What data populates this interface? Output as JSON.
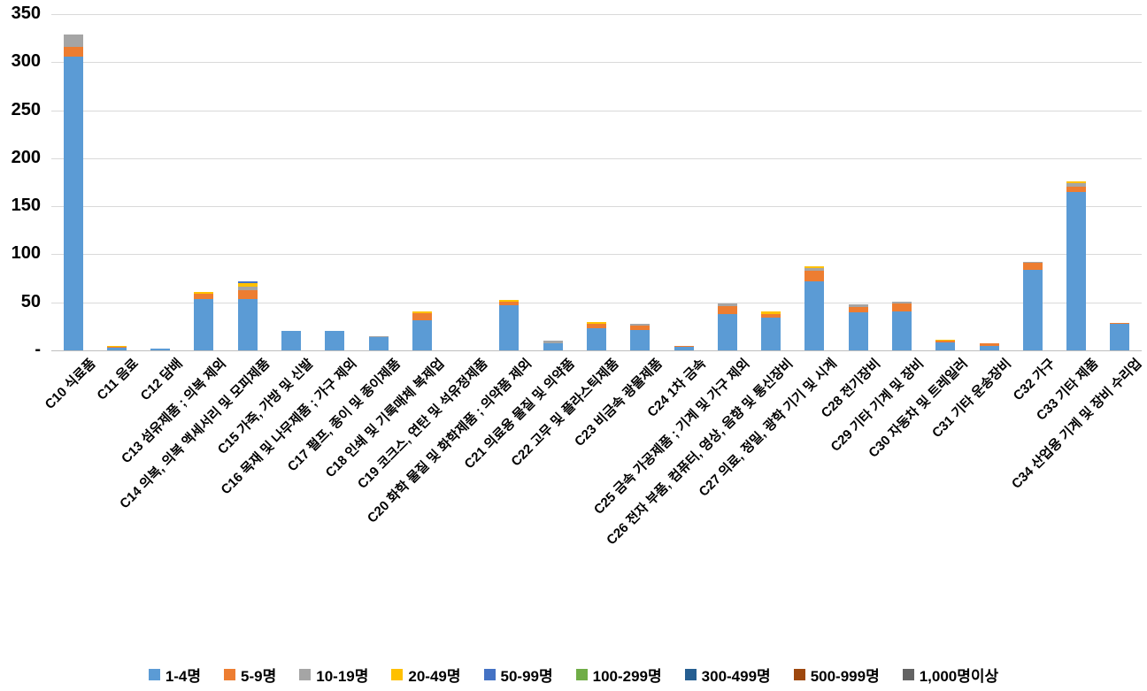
{
  "chart_data": {
    "type": "bar",
    "stacked": true,
    "title": "",
    "xlabel": "",
    "ylabel": "",
    "ylim": [
      0,
      350
    ],
    "ytick_step": 50,
    "ytick_labels": [
      "-",
      "50",
      "100",
      "150",
      "200",
      "250",
      "300",
      "350"
    ],
    "grid": true,
    "legend_position": "bottom",
    "categories": [
      "C10 식료품",
      "C11 음료",
      "C12 담배",
      "C13 섬유제품 ; 의복 제외",
      "C14 의복, 의복 액세서리 및 모피제품",
      "C15 가죽, 가방 및 신발",
      "C16 목재 및 나무제품 ; 가구 제외",
      "C17 펄프, 종이 및 종이제품",
      "C18 인쇄 및 기록매체 복제업",
      "C19 코크스, 연탄 및 석유정제품",
      "C20 화학 물질 및 화학제품 ; 의약품 제외",
      "C21 의료용 물질 및 의약품",
      "C22 고무 및 플라스틱제품",
      "C23 비금속 광물제품",
      "C24 1차 금속",
      "C25 금속 가공제품 ; 기계 및 가구 제외",
      "C26 전자 부품, 컴퓨터, 영상, 음향 및 통신장비",
      "C27 의료, 정밀, 광학 기기 및 시계",
      "C28 전기장비",
      "C29 기타 기계 및 장비",
      "C30 자동차 및 트레일러",
      "C31 기타 운송장비",
      "C32 가구",
      "C33 기타 제품",
      "C34 산업용 기계 및 장비 수리업"
    ],
    "series": [
      {
        "name": "1-4명",
        "color": "#5B9BD5",
        "values": [
          306,
          3,
          1.5,
          53,
          53,
          20.5,
          20.5,
          14,
          31,
          0,
          47,
          7,
          23,
          21,
          4,
          38,
          34,
          72,
          40,
          41,
          8.5,
          5,
          84,
          165,
          28
        ]
      },
      {
        "name": "5-9명",
        "color": "#ED7D31",
        "values": [
          10,
          1,
          0,
          6,
          10,
          0,
          0,
          0,
          8,
          0,
          4,
          0,
          5,
          5,
          0.5,
          8,
          3.5,
          11,
          5,
          8,
          1.5,
          2,
          7.5,
          5,
          1
        ]
      },
      {
        "name": "10-19명",
        "color": "#A5A5A5",
        "values": [
          13,
          0,
          0,
          0,
          3,
          0,
          0,
          1,
          0,
          0,
          0,
          3,
          0,
          2,
          0,
          3,
          0,
          3,
          3,
          2,
          0,
          0,
          1,
          4,
          0
        ]
      },
      {
        "name": "20-49명",
        "color": "#FFC000",
        "values": [
          0,
          0.5,
          0,
          2,
          4,
          0,
          0,
          0,
          2,
          0,
          2,
          0,
          1.5,
          0,
          0,
          0,
          3,
          1.5,
          0,
          0,
          1,
          0,
          0,
          2,
          0
        ]
      },
      {
        "name": "50-99명",
        "color": "#4472C4",
        "values": [
          0,
          0,
          0,
          0,
          1.5,
          0,
          0,
          0,
          0,
          0,
          0,
          0,
          0,
          0,
          0,
          0,
          0,
          0,
          0,
          0,
          0,
          0,
          0,
          0,
          0
        ]
      },
      {
        "name": "100-299명",
        "color": "#70AD47",
        "values": [
          0,
          0,
          0,
          0,
          0,
          0,
          0,
          0,
          0,
          0,
          0,
          0,
          0,
          0,
          0,
          0,
          0,
          0,
          0,
          0,
          0,
          0,
          0,
          0,
          0
        ]
      },
      {
        "name": "300-499명",
        "color": "#255E91",
        "values": [
          0,
          0,
          0,
          0,
          0,
          0,
          0,
          0,
          0,
          0,
          0,
          0,
          0,
          0,
          0,
          0,
          0,
          0,
          0,
          0,
          0,
          0,
          0,
          0,
          0
        ]
      },
      {
        "name": "500-999명",
        "color": "#9E480E",
        "values": [
          0,
          0,
          0,
          0,
          0,
          0,
          0,
          0,
          0,
          0,
          0,
          0,
          0,
          0,
          0,
          0,
          0,
          0,
          0,
          0,
          0,
          0,
          0,
          0,
          0
        ]
      },
      {
        "name": "1,000명이상",
        "color": "#636363",
        "values": [
          0,
          0,
          0,
          0,
          0,
          0,
          0,
          0,
          0,
          0,
          0,
          0,
          0,
          0,
          0,
          0,
          0,
          0,
          0,
          0,
          0,
          0,
          0,
          0,
          0
        ]
      }
    ]
  }
}
